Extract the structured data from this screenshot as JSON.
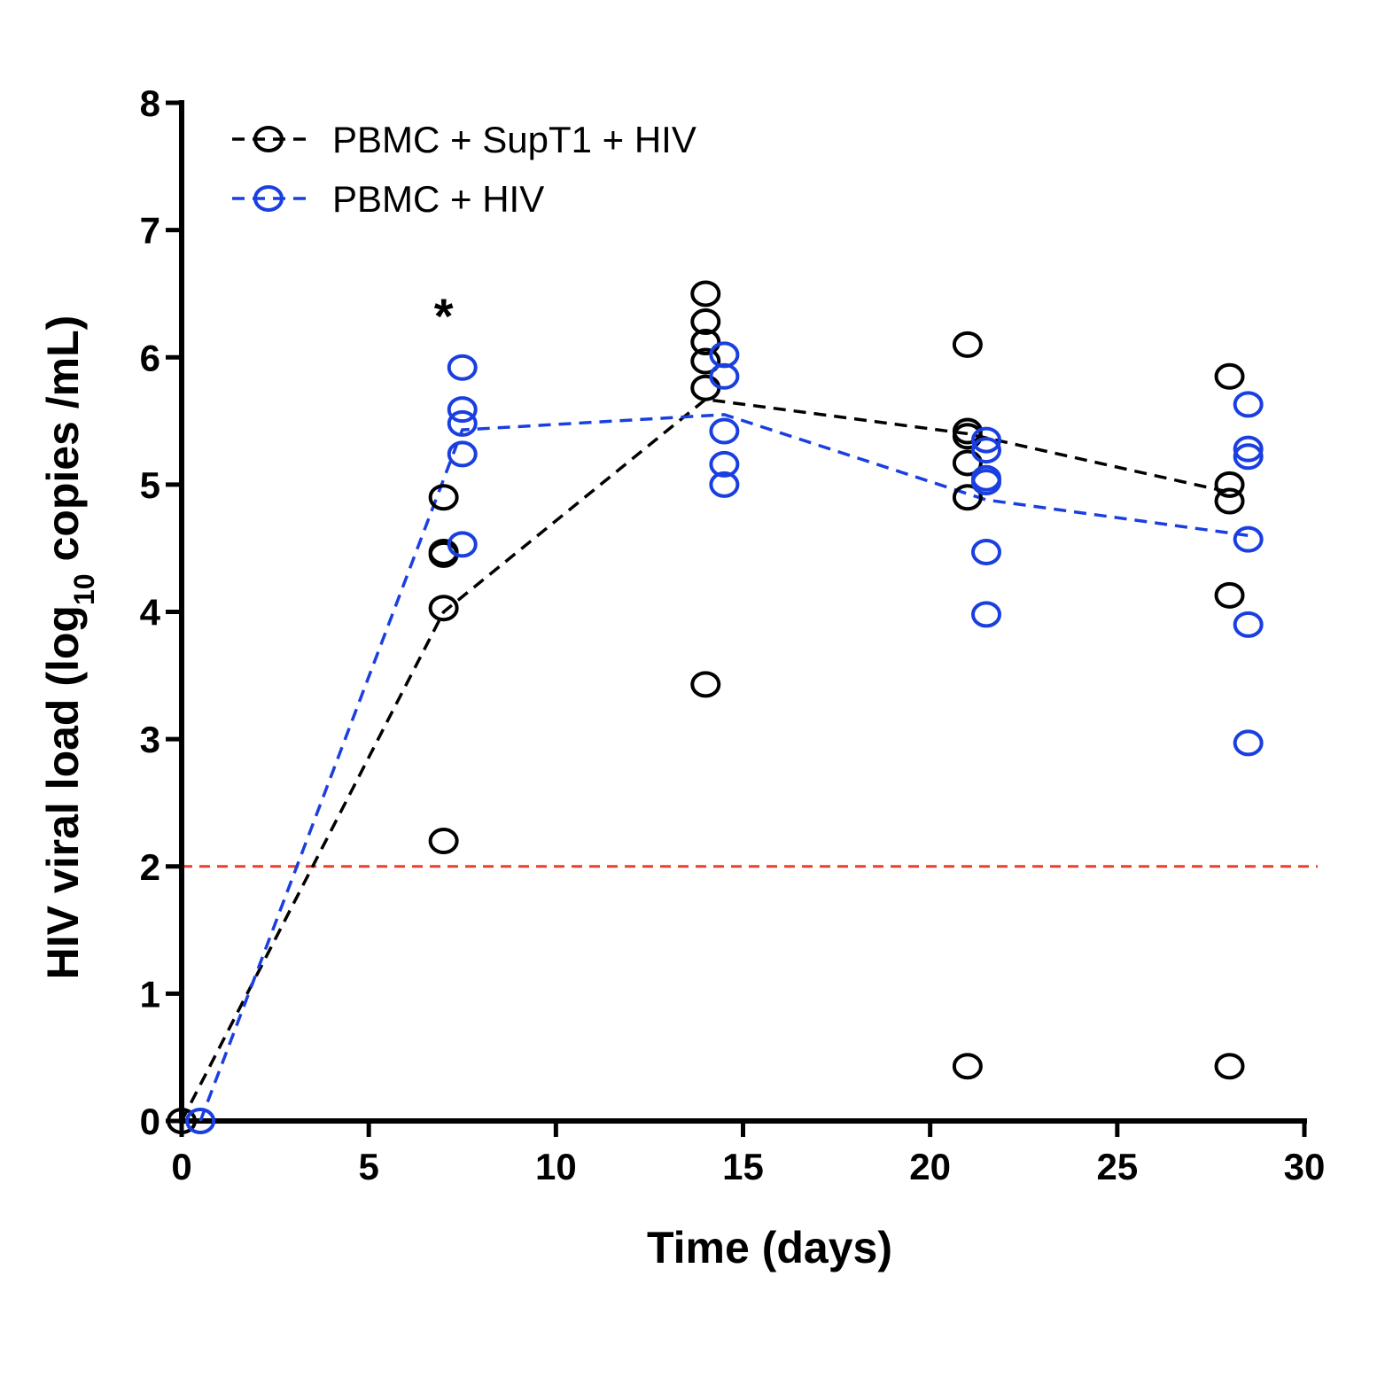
{
  "chart_data": {
    "type": "scatter",
    "xlabel": "Time (days)",
    "ylabel_parts": [
      "HIV viral load (log",
      "10",
      " copies /mL)"
    ],
    "xlim": [
      0,
      30
    ],
    "ylim": [
      0,
      8
    ],
    "xticks": [
      0,
      5,
      10,
      15,
      20,
      25,
      30
    ],
    "yticks": [
      0,
      1,
      2,
      3,
      4,
      5,
      6,
      7,
      8
    ],
    "grid": false,
    "legend_position": "top-left",
    "reference_line": {
      "y": 2,
      "color": "#e8412c",
      "style": "dashed"
    },
    "annotations": [
      {
        "text": "*",
        "x": 7,
        "y": 6.4
      }
    ],
    "series": [
      {
        "name": "PBMC + SupT1 + HIV",
        "color": "#000000",
        "mean_line": [
          {
            "x": 0,
            "y": 0
          },
          {
            "x": 7,
            "y": 4.0
          },
          {
            "x": 14,
            "y": 5.67
          },
          {
            "x": 21,
            "y": 5.4
          },
          {
            "x": 28,
            "y": 4.94
          }
        ],
        "points": [
          {
            "x": 0,
            "y": 0
          },
          {
            "x": 7,
            "y": 4.9
          },
          {
            "x": 7,
            "y": 4.47
          },
          {
            "x": 7,
            "y": 4.45
          },
          {
            "x": 7,
            "y": 4.03
          },
          {
            "x": 7,
            "y": 2.2
          },
          {
            "x": 14,
            "y": 6.5
          },
          {
            "x": 14,
            "y": 6.28
          },
          {
            "x": 14,
            "y": 6.12
          },
          {
            "x": 14,
            "y": 5.97
          },
          {
            "x": 14,
            "y": 5.76
          },
          {
            "x": 14,
            "y": 3.43
          },
          {
            "x": 21,
            "y": 6.1
          },
          {
            "x": 21,
            "y": 5.42
          },
          {
            "x": 21,
            "y": 5.38
          },
          {
            "x": 21,
            "y": 5.17
          },
          {
            "x": 21,
            "y": 4.9
          },
          {
            "x": 21,
            "y": 0.43
          },
          {
            "x": 28,
            "y": 5.85
          },
          {
            "x": 28,
            "y": 5.0
          },
          {
            "x": 28,
            "y": 4.87
          },
          {
            "x": 28,
            "y": 4.13
          },
          {
            "x": 28,
            "y": 0.43
          }
        ]
      },
      {
        "name": "PBMC + HIV",
        "color": "#1a3fe0",
        "mean_line": [
          {
            "x": 0.5,
            "y": 0
          },
          {
            "x": 7.5,
            "y": 5.43
          },
          {
            "x": 14.5,
            "y": 5.55
          },
          {
            "x": 21.5,
            "y": 4.88
          },
          {
            "x": 28.5,
            "y": 4.6
          }
        ],
        "points": [
          {
            "x": 0.5,
            "y": 0
          },
          {
            "x": 7.5,
            "y": 5.92
          },
          {
            "x": 7.5,
            "y": 5.59
          },
          {
            "x": 7.5,
            "y": 5.48
          },
          {
            "x": 7.5,
            "y": 5.24
          },
          {
            "x": 7.5,
            "y": 4.53
          },
          {
            "x": 14.5,
            "y": 6.02
          },
          {
            "x": 14.5,
            "y": 5.85
          },
          {
            "x": 14.5,
            "y": 5.42
          },
          {
            "x": 14.5,
            "y": 5.16
          },
          {
            "x": 14.5,
            "y": 5.0
          },
          {
            "x": 21.5,
            "y": 5.35
          },
          {
            "x": 21.5,
            "y": 5.27
          },
          {
            "x": 21.5,
            "y": 5.05
          },
          {
            "x": 21.5,
            "y": 5.02
          },
          {
            "x": 21.5,
            "y": 4.47
          },
          {
            "x": 21.5,
            "y": 3.98
          },
          {
            "x": 28.5,
            "y": 5.63
          },
          {
            "x": 28.5,
            "y": 5.28
          },
          {
            "x": 28.5,
            "y": 5.22
          },
          {
            "x": 28.5,
            "y": 4.57
          },
          {
            "x": 28.5,
            "y": 3.9
          },
          {
            "x": 28.5,
            "y": 2.97
          }
        ]
      }
    ]
  }
}
